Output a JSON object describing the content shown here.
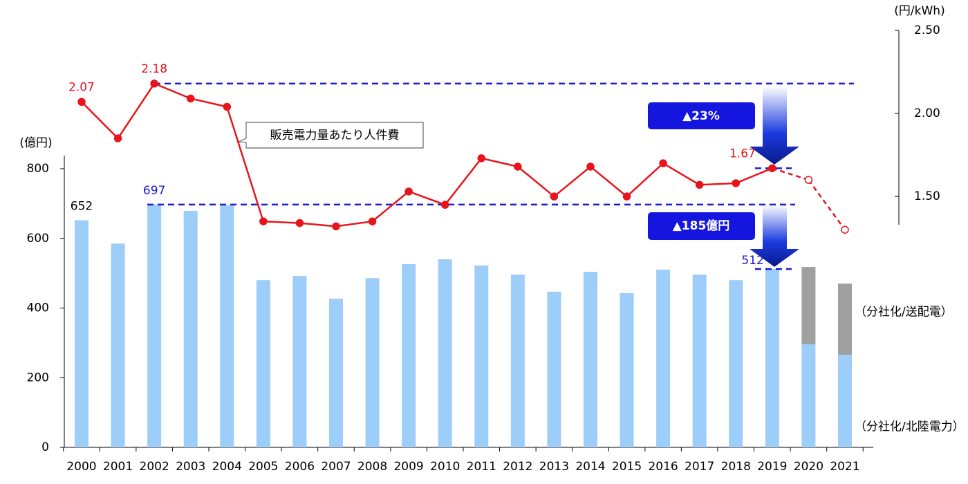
{
  "chart_data": {
    "type": "bar_line",
    "categories": [
      "2000",
      "2001",
      "2002",
      "2003",
      "2004",
      "2005",
      "2006",
      "2007",
      "2008",
      "2009",
      "2010",
      "2011",
      "2012",
      "2013",
      "2014",
      "2015",
      "2016",
      "2017",
      "2018",
      "2019",
      "2020",
      "2021"
    ],
    "ylabel": "(億円)",
    "y2label": "(円/kWh)",
    "ylim": [
      0,
      800
    ],
    "yticks": [
      0,
      200,
      400,
      600,
      800
    ],
    "y2lim": [
      1.33,
      2.5
    ],
    "y2ticks": [
      {
        "value": 1.5,
        "label": "1.50"
      },
      {
        "value": 2.0,
        "label": "2.00"
      },
      {
        "value": 2.5,
        "label": "2.50"
      }
    ],
    "series": [
      {
        "type": "bar",
        "color": "#9dcdf9",
        "values": [
          652,
          585,
          697,
          679,
          695,
          480,
          492,
          427,
          486,
          526,
          540,
          522,
          496,
          447,
          504,
          443,
          510,
          496,
          480,
          512,
          null,
          null
        ],
        "value_labels": [
          "652",
          null,
          "697",
          null,
          null,
          null,
          null,
          null,
          null,
          null,
          null,
          null,
          null,
          null,
          null,
          null,
          null,
          null,
          null,
          "512",
          null,
          null
        ],
        "value_label_colors": [
          "#000000",
          null,
          "#1a1ad0",
          null,
          null,
          null,
          null,
          null,
          null,
          null,
          null,
          null,
          null,
          null,
          null,
          null,
          null,
          null,
          null,
          "#1a1ad0",
          null,
          null
        ]
      },
      {
        "type": "bar",
        "name": "（分社化/北陸電力）",
        "color": "#9dcdf9",
        "values": [
          null,
          null,
          null,
          null,
          null,
          null,
          null,
          null,
          null,
          null,
          null,
          null,
          null,
          null,
          null,
          null,
          null,
          null,
          null,
          null,
          296,
          266
        ]
      },
      {
        "type": "bar",
        "name": "（分社化/送配電）",
        "color": "#a0a0a0",
        "stack_on": 1,
        "values": [
          null,
          null,
          null,
          null,
          null,
          null,
          null,
          null,
          null,
          null,
          null,
          null,
          null,
          null,
          null,
          null,
          null,
          null,
          null,
          null,
          222,
          204
        ]
      },
      {
        "type": "line",
        "axis": "y2",
        "color": "#e8141b",
        "dashed": false,
        "values": [
          2.07,
          1.85,
          2.18,
          2.09,
          2.04,
          1.35,
          1.34,
          1.32,
          1.35,
          1.53,
          1.45,
          1.73,
          1.68,
          1.5,
          1.68,
          1.5,
          1.7,
          1.57,
          1.58,
          1.67,
          null,
          null
        ],
        "value_labels": [
          "2.07",
          null,
          "2.18",
          null,
          null,
          null,
          null,
          null,
          null,
          null,
          null,
          null,
          null,
          null,
          null,
          null,
          null,
          null,
          null,
          "1.67",
          null,
          null
        ]
      },
      {
        "type": "line",
        "axis": "y2",
        "color": "#e8141b",
        "dashed": true,
        "values": [
          null,
          null,
          null,
          null,
          null,
          null,
          null,
          null,
          null,
          null,
          null,
          null,
          null,
          null,
          null,
          null,
          null,
          null,
          null,
          null,
          1.6,
          1.3
        ]
      }
    ],
    "reference_lines": [
      {
        "axis": "y2",
        "value": 2.18,
        "color": "#1a1ad0"
      },
      {
        "axis": "y",
        "value": 697,
        "color": "#1a1ad0"
      },
      {
        "axis": "y",
        "value": 512,
        "color": "#1a1ad0"
      },
      {
        "axis": "y2",
        "value": 1.67,
        "color": "#1a1ad0"
      }
    ],
    "annotations": [
      {
        "text": "▲23%"
      },
      {
        "text": "▲185億円"
      },
      {
        "text": "販売電力量あたり人件費"
      }
    ]
  }
}
